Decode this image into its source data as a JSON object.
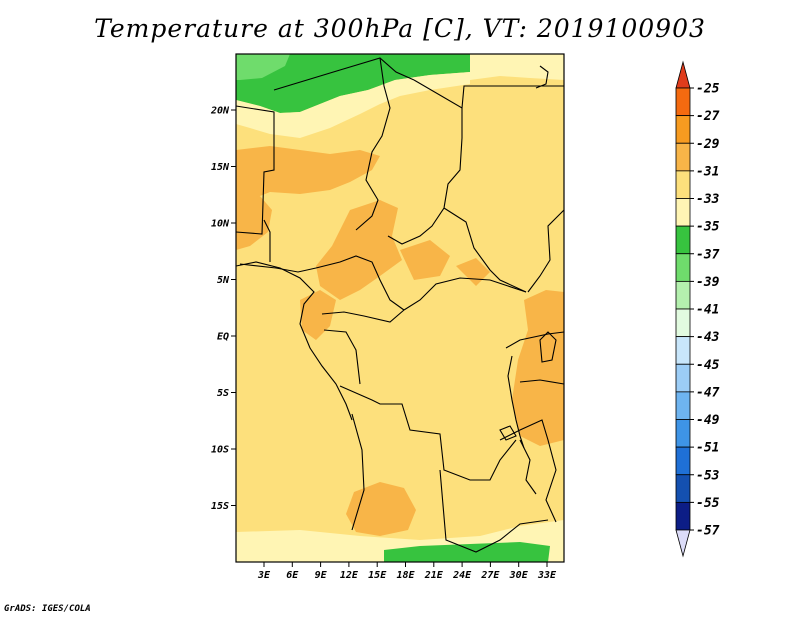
{
  "title": "Temperature at 300hPa [C], VT: 2019100903",
  "credit": "GrADS: IGES/COLA",
  "map": {
    "lat_ticks": [
      "20N",
      "15N",
      "10N",
      "5N",
      "EQ",
      "5S",
      "10S",
      "15S"
    ],
    "lon_ticks": [
      "3E",
      "6E",
      "9E",
      "12E",
      "15E",
      "18E",
      "21E",
      "24E",
      "27E",
      "30E",
      "33E"
    ]
  },
  "colorbar": {
    "labels": [
      "-25",
      "-27",
      "-29",
      "-31",
      "-33",
      "-35",
      "-37",
      "-39",
      "-41",
      "-43",
      "-45",
      "-47",
      "-49",
      "-51",
      "-53",
      "-55",
      "-57"
    ],
    "colors": [
      "#e03c1c",
      "#f46a10",
      "#f79b20",
      "#f8b548",
      "#fde07c",
      "#fff5b4",
      "#37c33f",
      "#6fdc6c",
      "#b4f0ae",
      "#e2fbe0",
      "#c8e6fb",
      "#9ccdf6",
      "#6eb4f0",
      "#3e94e6",
      "#1f70d6",
      "#1450b0",
      "#0c1d86",
      "#dcdcf8"
    ]
  }
}
